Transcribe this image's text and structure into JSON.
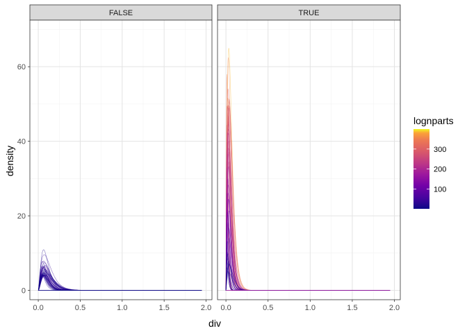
{
  "chart_data": {
    "type": "line",
    "subtype": "faceted-density",
    "xlabel": "div",
    "ylabel": "density",
    "xlim": [
      -0.1,
      2.07
    ],
    "ylim": [
      -2.5,
      72.5
    ],
    "x_ticks": [
      0,
      0.5,
      1,
      1.5,
      2
    ],
    "x_tick_labels": [
      "0.0",
      "0.5",
      "1.0",
      "1.5",
      "2.0"
    ],
    "y_ticks": [
      0,
      20,
      40,
      60
    ],
    "y_tick_labels": [
      "0",
      "20",
      "40",
      "60"
    ],
    "grid": true,
    "facets": [
      {
        "label": "FALSE",
        "color_range": [
          1,
          60
        ],
        "curve_count": 45,
        "peak_x": 0.06,
        "peak_y_range": [
          4.0,
          11.5
        ],
        "x_max": 1.95
      },
      {
        "label": "TRUE",
        "color_range": [
          1,
          390
        ],
        "curve_count": 60,
        "peak_x": 0.02,
        "peak_y_range": [
          3.5,
          69
        ],
        "x_max": 1.95
      }
    ],
    "legend": {
      "title": "lognparts",
      "position": "right",
      "range": [
        1,
        400
      ],
      "ticks": [
        100,
        200,
        300
      ],
      "tick_labels": [
        "100",
        "200",
        "300"
      ],
      "colormap": "plasma"
    }
  }
}
